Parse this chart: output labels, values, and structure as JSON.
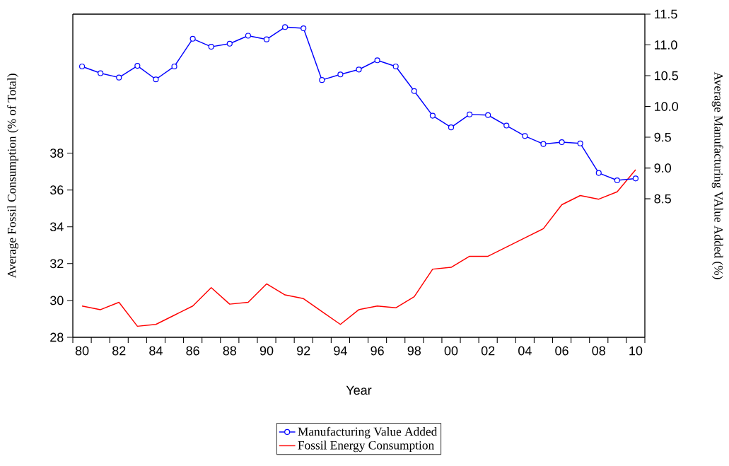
{
  "chart_data": {
    "type": "line",
    "xlabel": "Year",
    "ylabel": "Average Fossil Consumption (% of Total)",
    "y2label": "Average Manufacturing VAlue Added (%)",
    "x": [
      1980,
      1981,
      1982,
      1983,
      1984,
      1985,
      1986,
      1987,
      1988,
      1989,
      1990,
      1991,
      1992,
      1993,
      1994,
      1995,
      1996,
      1997,
      1998,
      1999,
      2000,
      2001,
      2002,
      2003,
      2004,
      2005,
      2006,
      2007,
      2008,
      2009,
      2010
    ],
    "series": [
      {
        "name": "Manufacturing Value Added",
        "color": "#0000ff",
        "axis": "y2",
        "marker": "circle",
        "values": [
          10.65,
          10.54,
          10.47,
          10.66,
          10.44,
          10.65,
          11.1,
          10.97,
          11.02,
          11.15,
          11.09,
          11.29,
          11.27,
          10.43,
          10.52,
          10.6,
          10.75,
          10.65,
          10.25,
          9.85,
          9.66,
          9.87,
          9.86,
          9.69,
          9.52,
          9.39,
          9.42,
          9.4,
          8.92,
          8.8,
          8.83
        ]
      },
      {
        "name": "Fossil Energy Consumption",
        "color": "#ff0000",
        "axis": "y",
        "marker": "none",
        "values": [
          29.7,
          29.5,
          29.9,
          28.6,
          28.7,
          29.2,
          29.7,
          30.7,
          29.8,
          29.9,
          30.9,
          30.3,
          30.1,
          29.4,
          28.7,
          29.5,
          29.7,
          29.6,
          30.2,
          31.7,
          31.8,
          32.4,
          32.4,
          32.9,
          33.4,
          33.9,
          35.2,
          35.7,
          35.5,
          35.9,
          37.1
        ]
      }
    ],
    "xlim": [
      1979.5,
      2010.5
    ],
    "xticks": [
      {
        "value": 1979.5,
        "label": null
      },
      {
        "value": 1980,
        "label": "80"
      },
      {
        "value": 1980.5,
        "label": null
      },
      {
        "value": 1981.5,
        "label": null
      },
      {
        "value": 1982,
        "label": "82"
      },
      {
        "value": 1982.5,
        "label": null
      },
      {
        "value": 1983.5,
        "label": null
      },
      {
        "value": 1984,
        "label": "84"
      },
      {
        "value": 1984.5,
        "label": null
      },
      {
        "value": 1985.5,
        "label": null
      },
      {
        "value": 1986,
        "label": "86"
      },
      {
        "value": 1986.5,
        "label": null
      },
      {
        "value": 1987.5,
        "label": null
      },
      {
        "value": 1988,
        "label": "88"
      },
      {
        "value": 1988.5,
        "label": null
      },
      {
        "value": 1989.5,
        "label": null
      },
      {
        "value": 1990,
        "label": "90"
      },
      {
        "value": 1990.5,
        "label": null
      },
      {
        "value": 1991.5,
        "label": null
      },
      {
        "value": 1992,
        "label": "92"
      },
      {
        "value": 1992.5,
        "label": null
      },
      {
        "value": 1993.5,
        "label": null
      },
      {
        "value": 1994,
        "label": "94"
      },
      {
        "value": 1994.5,
        "label": null
      },
      {
        "value": 1995.5,
        "label": null
      },
      {
        "value": 1996,
        "label": "96"
      },
      {
        "value": 1996.5,
        "label": null
      },
      {
        "value": 1997.5,
        "label": null
      },
      {
        "value": 1998,
        "label": "98"
      },
      {
        "value": 1998.5,
        "label": null
      },
      {
        "value": 1999.5,
        "label": null
      },
      {
        "value": 2000,
        "label": "00"
      },
      {
        "value": 2000.5,
        "label": null
      },
      {
        "value": 2001.5,
        "label": null
      },
      {
        "value": 2002,
        "label": "02"
      },
      {
        "value": 2002.5,
        "label": null
      },
      {
        "value": 2003.5,
        "label": null
      },
      {
        "value": 2004,
        "label": "04"
      },
      {
        "value": 2004.5,
        "label": null
      },
      {
        "value": 2005.5,
        "label": null
      },
      {
        "value": 2006,
        "label": "06"
      },
      {
        "value": 2006.5,
        "label": null
      },
      {
        "value": 2007.5,
        "label": null
      },
      {
        "value": 2008,
        "label": "08"
      },
      {
        "value": 2008.5,
        "label": null
      },
      {
        "value": 2009.5,
        "label": null
      },
      {
        "value": 2010,
        "label": "10"
      },
      {
        "value": 2010.5,
        "label": null
      }
    ],
    "ylim": [
      28,
      45.55
    ],
    "yticks": [
      28,
      30,
      32,
      34,
      36,
      38
    ],
    "y2lim": [
      6.25,
      11.5
    ],
    "y2ticks": [
      8.5,
      {
        "value": 9,
        "label": "9.0"
      },
      9.5,
      {
        "value": 10,
        "label": "10.0"
      },
      10.5,
      {
        "value": 11,
        "label": "11.0"
      },
      11.5
    ],
    "legend": "bottom",
    "grid": false
  }
}
